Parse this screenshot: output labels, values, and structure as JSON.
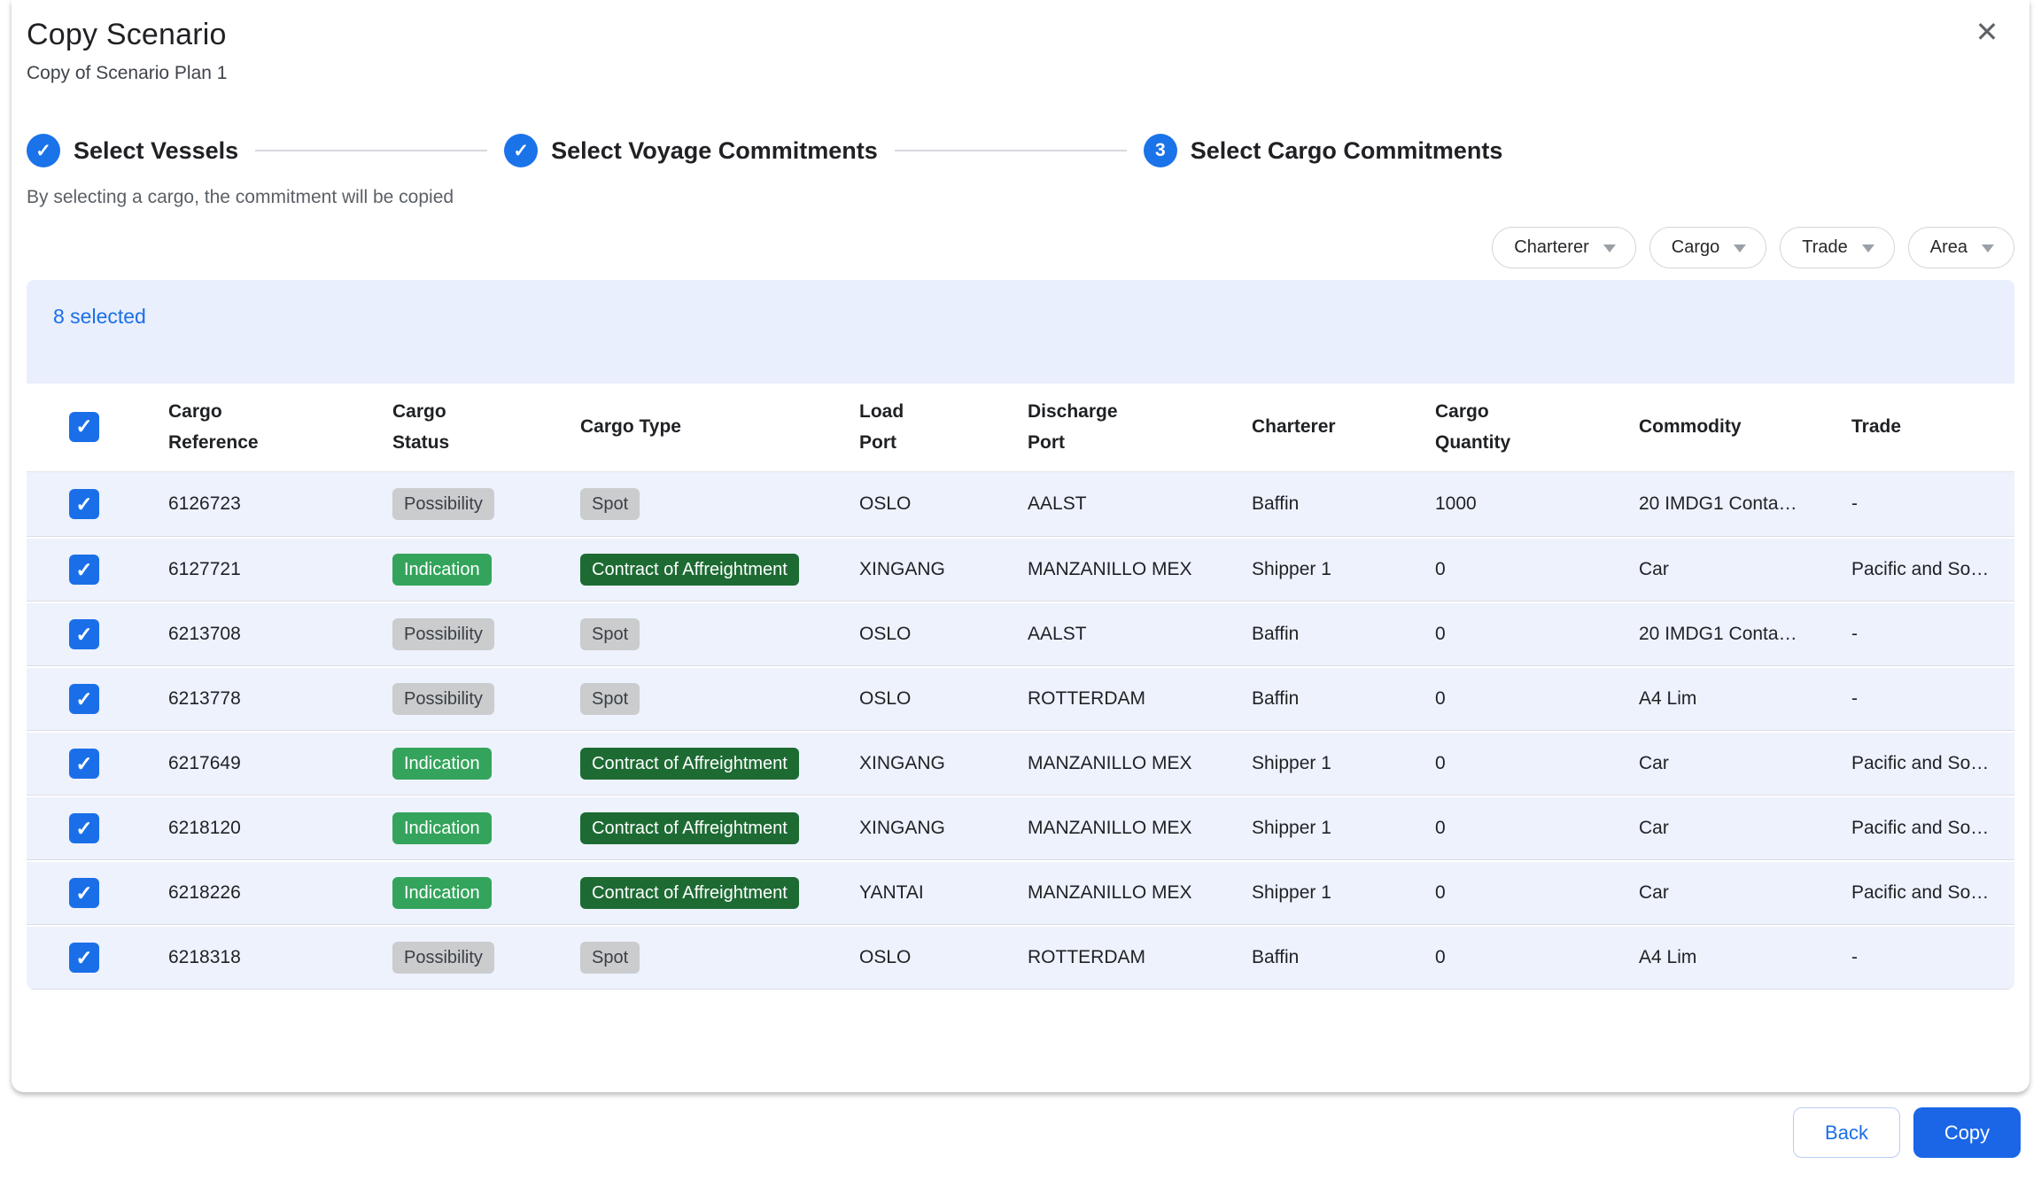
{
  "dialog": {
    "title": "Copy Scenario",
    "subtitle": "Copy of Scenario Plan 1"
  },
  "stepper": {
    "steps": [
      {
        "label": "Select Vessels",
        "state": "completed",
        "indicator": "check"
      },
      {
        "label": "Select Voyage Commitments",
        "state": "completed",
        "indicator": "check"
      },
      {
        "label": "Select Cargo Commitments",
        "state": "active",
        "indicator": "3"
      }
    ],
    "helper_text": "By selecting a cargo, the commitment will be copied"
  },
  "filters": [
    {
      "label": "Charterer"
    },
    {
      "label": "Cargo"
    },
    {
      "label": "Trade"
    },
    {
      "label": "Area"
    }
  ],
  "table": {
    "selection_summary": "8 selected",
    "select_all_checked": true,
    "columns": [
      {
        "lines": [
          "Cargo",
          "Reference"
        ]
      },
      {
        "lines": [
          "Cargo",
          "Status"
        ]
      },
      {
        "lines": [
          "Cargo Type"
        ]
      },
      {
        "lines": [
          "Load",
          "Port"
        ]
      },
      {
        "lines": [
          "Discharge",
          "Port"
        ]
      },
      {
        "lines": [
          "Charterer"
        ]
      },
      {
        "lines": [
          "Cargo",
          "Quantity"
        ]
      },
      {
        "lines": [
          "Commodity"
        ]
      },
      {
        "lines": [
          "Trade"
        ]
      }
    ],
    "rows": [
      {
        "checked": true,
        "cargo_reference": "6126723",
        "cargo_status": {
          "text": "Possibility",
          "variant": "neutral"
        },
        "cargo_type": {
          "text": "Spot",
          "variant": "neutral"
        },
        "load_port": "OSLO",
        "discharge_port": "AALST",
        "charterer": "Baffin",
        "cargo_quantity": "1000",
        "commodity": "20 IMDG1 Conta…",
        "trade": "-"
      },
      {
        "checked": true,
        "cargo_reference": "6127721",
        "cargo_status": {
          "text": "Indication",
          "variant": "green"
        },
        "cargo_type": {
          "text": "Contract of Affreightment",
          "variant": "dark-green"
        },
        "load_port": "XINGANG",
        "discharge_port": "MANZANILLO MEX",
        "charterer": "Shipper 1",
        "cargo_quantity": "0",
        "commodity": "Car",
        "trade": "Pacific and So…"
      },
      {
        "checked": true,
        "cargo_reference": "6213708",
        "cargo_status": {
          "text": "Possibility",
          "variant": "neutral"
        },
        "cargo_type": {
          "text": "Spot",
          "variant": "neutral"
        },
        "load_port": "OSLO",
        "discharge_port": "AALST",
        "charterer": "Baffin",
        "cargo_quantity": "0",
        "commodity": "20 IMDG1 Conta…",
        "trade": "-"
      },
      {
        "checked": true,
        "cargo_reference": "6213778",
        "cargo_status": {
          "text": "Possibility",
          "variant": "neutral"
        },
        "cargo_type": {
          "text": "Spot",
          "variant": "neutral"
        },
        "load_port": "OSLO",
        "discharge_port": "ROTTERDAM",
        "charterer": "Baffin",
        "cargo_quantity": "0",
        "commodity": "A4 Lim",
        "trade": "-"
      },
      {
        "checked": true,
        "cargo_reference": "6217649",
        "cargo_status": {
          "text": "Indication",
          "variant": "green"
        },
        "cargo_type": {
          "text": "Contract of Affreightment",
          "variant": "dark-green"
        },
        "load_port": "XINGANG",
        "discharge_port": "MANZANILLO MEX",
        "charterer": "Shipper 1",
        "cargo_quantity": "0",
        "commodity": "Car",
        "trade": "Pacific and So…"
      },
      {
        "checked": true,
        "cargo_reference": "6218120",
        "cargo_status": {
          "text": "Indication",
          "variant": "green"
        },
        "cargo_type": {
          "text": "Contract of Affreightment",
          "variant": "dark-green"
        },
        "load_port": "XINGANG",
        "discharge_port": "MANZANILLO MEX",
        "charterer": "Shipper 1",
        "cargo_quantity": "0",
        "commodity": "Car",
        "trade": "Pacific and So…"
      },
      {
        "checked": true,
        "cargo_reference": "6218226",
        "cargo_status": {
          "text": "Indication",
          "variant": "green"
        },
        "cargo_type": {
          "text": "Contract of Affreightment",
          "variant": "dark-green"
        },
        "load_port": "YANTAI",
        "discharge_port": "MANZANILLO MEX",
        "charterer": "Shipper 1",
        "cargo_quantity": "0",
        "commodity": "Car",
        "trade": "Pacific and So…"
      },
      {
        "checked": true,
        "cargo_reference": "6218318",
        "cargo_status": {
          "text": "Possibility",
          "variant": "neutral"
        },
        "cargo_type": {
          "text": "Spot",
          "variant": "neutral"
        },
        "load_port": "OSLO",
        "discharge_port": "ROTTERDAM",
        "charterer": "Baffin",
        "cargo_quantity": "0",
        "commodity": "A4 Lim",
        "trade": "-"
      }
    ]
  },
  "footer": {
    "back_label": "Back",
    "copy_label": "Copy"
  },
  "colors": {
    "accent_blue": "#1a73e8",
    "copy_button_blue": "#1a66e6",
    "selection_bar_bg": "#e9effc",
    "row_bg": "#edf2fd",
    "badge_neutral_bg": "#caccce",
    "badge_green_bg": "#34a45c",
    "badge_dark_green_bg": "#1d6b33"
  }
}
